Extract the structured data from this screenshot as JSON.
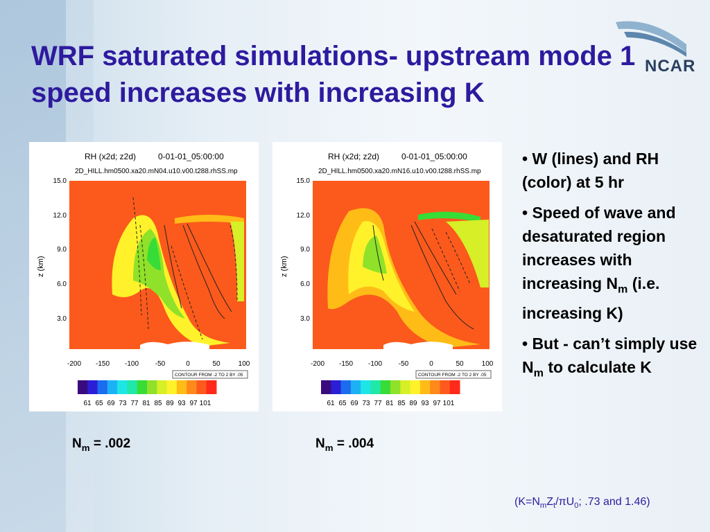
{
  "slide": {
    "title": "WRF saturated simulations- upstream mode 1 speed increases with increasing K",
    "logo_text": "NCAR",
    "title_color": "#2e1a9e"
  },
  "figures": [
    {
      "header_line1_left": "RH (x2d; z2d)",
      "header_line1_right": "0-01-01_05:00:00",
      "header_line2": "2D_HILL.hm0500.xa20.mN04.u10.v00.t288.rhSS.mp",
      "ylabel": "z (km)",
      "yticks": [
        "15.0",
        "12.0",
        "9.0",
        "6.0",
        "3.0"
      ],
      "xticks": [
        "-200",
        "-150",
        "-100",
        "-50",
        "0",
        "50",
        "100"
      ],
      "contour_note": "CONTOUR FROM -2 TO 2 BY .05",
      "colorbar_labels": [
        "61",
        "65",
        "69",
        "73",
        "77",
        "81",
        "85",
        "89",
        "93",
        "97",
        "101"
      ],
      "caption_prefix": "N",
      "caption_sub": "m",
      "caption_suffix": " = .002"
    },
    {
      "header_line1_left": "RH (x2d; z2d)",
      "header_line1_right": "0-01-01_05:00:00",
      "header_line2": "2D_HILL.hm0500.xa20.mN16.u10.v00.t288.rhSS.mp",
      "ylabel": "z (km)",
      "yticks": [
        "15.0",
        "12.0",
        "9.0",
        "6.0",
        "3.0"
      ],
      "xticks": [
        "-200",
        "-150",
        "-100",
        "-50",
        "0",
        "50",
        "100"
      ],
      "contour_note": "CONTOUR FROM -2 TO 2 BY .05",
      "colorbar_labels": [
        "61",
        "65",
        "69",
        "73",
        "77",
        "81",
        "85",
        "89",
        "93",
        "97",
        "101"
      ],
      "caption_prefix": "N",
      "caption_sub": "m",
      "caption_suffix": " = .004"
    }
  ],
  "colorbar_colors": [
    "#3a0b7d",
    "#2a1fd6",
    "#1c6cf0",
    "#1cb1f5",
    "#1ee6e6",
    "#1fe8a8",
    "#37dc37",
    "#8fe229",
    "#d6ef27",
    "#fff22a",
    "#ffbc17",
    "#ff8a1a",
    "#ff5a1e",
    "#ff2a1a"
  ],
  "bullets": [
    {
      "text": "• W (lines) and RH (color) at 5 hr"
    },
    {
      "text": "• Speed of wave and desaturated region increases with increasing N",
      "sub": "m",
      "tail": " (i.e. increasing K)"
    },
    {
      "text": "• But - can’t simply use N",
      "sub": "m",
      "tail": " to calculate K"
    }
  ],
  "formula": {
    "p1": "(K=N",
    "s1": "m",
    "p2": "Z",
    "s2": "t",
    "p3": "/πU",
    "s3": "0",
    "p4": "; .73 and 1.46)"
  }
}
